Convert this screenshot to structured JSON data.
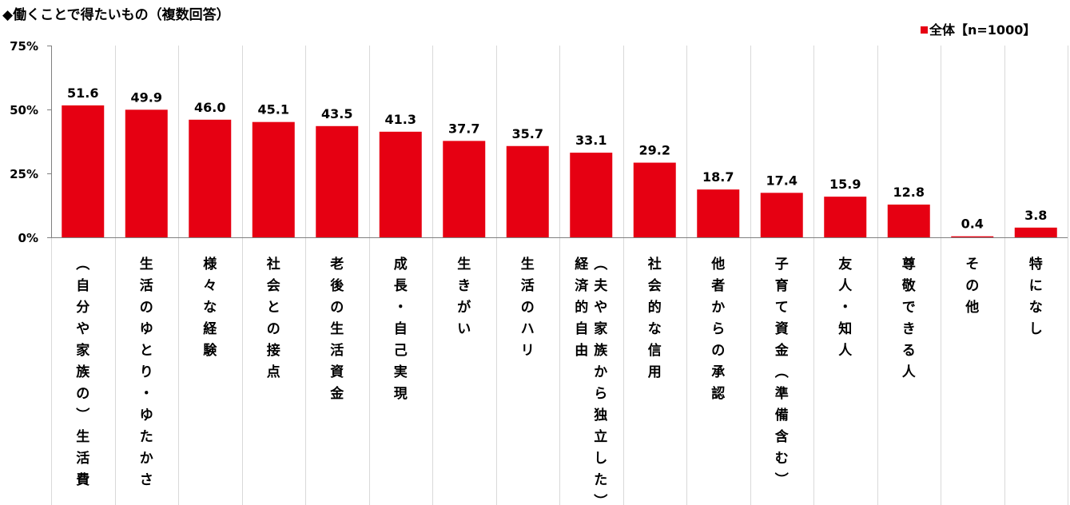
{
  "chart_data": {
    "type": "bar",
    "title": "◆働くことで得たいもの（複数回答）",
    "ylim": [
      0,
      75
    ],
    "yticks": [
      "0%",
      "25%",
      "50%",
      "75%"
    ],
    "ytick_values": [
      0,
      25,
      50,
      75
    ],
    "legend_position": "top-right",
    "grid": "vertical separators between categories",
    "series": [
      {
        "name": "全体【n=1000】",
        "color": "#e60012",
        "values": [
          51.6,
          49.9,
          46.0,
          45.1,
          43.5,
          41.3,
          37.7,
          35.7,
          33.1,
          29.2,
          18.7,
          17.4,
          15.9,
          12.8,
          0.4,
          3.8
        ]
      }
    ],
    "categories": [
      "（自分や家族の）生活費",
      "生活のゆとり・ゆたかさ",
      "様々な経験",
      "社会との接点",
      "老後の生活資金",
      "成長・自己実現",
      "生きがい",
      "生活のハリ",
      "経済的自由（夫や家族から独立した）",
      "社会的な信用",
      "他者からの承認",
      "子育て資金（準備含む）",
      "友人・知人",
      "尊敬できる人",
      "その他",
      "特になし"
    ],
    "category_label_columns": [
      [
        "（自分や家族の）生活費"
      ],
      [
        "生活のゆとり・ゆたかさ"
      ],
      [
        "様々な経験"
      ],
      [
        "社会との接点"
      ],
      [
        "老後の生活資金"
      ],
      [
        "成長・自己実現"
      ],
      [
        "生きがい"
      ],
      [
        "生活のハリ"
      ],
      [
        "経済的自由",
        "（夫や家族から独立した）"
      ],
      [
        "社会的な信用"
      ],
      [
        "他者からの承認"
      ],
      [
        "子育て資金（準備含む）"
      ],
      [
        "友人・知人"
      ],
      [
        "尊敬できる人"
      ],
      [
        "その他"
      ],
      [
        "特になし"
      ]
    ]
  }
}
